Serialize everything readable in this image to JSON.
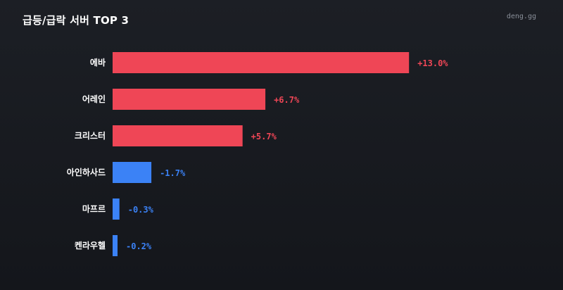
{
  "header": {
    "title": "급등/급락 서버 TOP 3",
    "brand": "deng.gg"
  },
  "colors": {
    "positive": "#ef4656",
    "negative": "#3b82f6",
    "background": "#17191e"
  },
  "chart_data": {
    "type": "bar",
    "orientation": "horizontal",
    "title": "급등/급락 서버 TOP 3",
    "categories": [
      "에바",
      "어레인",
      "크리스터",
      "아인하사드",
      "마프르",
      "켄라우헬"
    ],
    "values": [
      13.0,
      6.7,
      5.7,
      -1.7,
      -0.3,
      -0.2
    ],
    "value_labels": [
      "+13.0%",
      "+6.7%",
      "+5.7%",
      "-1.7%",
      "-0.3%",
      "-0.2%"
    ],
    "unit": "%",
    "grid": false,
    "legend": "none"
  }
}
